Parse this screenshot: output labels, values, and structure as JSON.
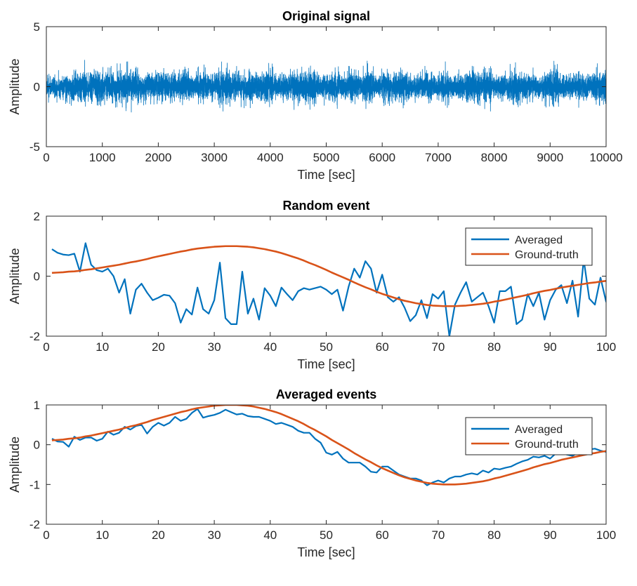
{
  "chart_data": [
    {
      "type": "line",
      "title": "Original signal",
      "xlabel": "Time [sec]",
      "ylabel": "Amplitude",
      "xlim": [
        0,
        10000
      ],
      "ylim": [
        -5,
        5
      ],
      "xticks": [
        "0",
        "1000",
        "2000",
        "3000",
        "4000",
        "5000",
        "6000",
        "7000",
        "8000",
        "9000",
        "10000"
      ],
      "yticks": [
        "-5",
        "0",
        "5"
      ],
      "grid": false,
      "legend": null,
      "series": [
        {
          "color": "#0072BD",
          "noise": {
            "n": 10000,
            "x_start": 1,
            "x_end": 10000,
            "std": 0.55,
            "clip": 2.3,
            "seed": 7
          }
        }
      ]
    },
    {
      "type": "line",
      "title": "Random event",
      "xlabel": "Time [sec]",
      "ylabel": "Amplitude",
      "xlim": [
        0,
        100
      ],
      "ylim": [
        -2,
        2
      ],
      "xticks": [
        "0",
        "10",
        "20",
        "30",
        "40",
        "50",
        "60",
        "70",
        "80",
        "90",
        "100"
      ],
      "yticks": [
        "-2",
        "0",
        "2"
      ],
      "grid": false,
      "legend": {
        "position": "right",
        "entries": [
          "Averaged",
          "Ground-truth"
        ]
      },
      "series": [
        {
          "name": "Averaged",
          "color": "#0072BD",
          "x_start": 1,
          "x_step": 1,
          "values": [
            0.9,
            0.78,
            0.72,
            0.7,
            0.75,
            0.15,
            1.1,
            0.38,
            0.2,
            0.15,
            0.25,
            0.0,
            -0.55,
            -0.1,
            -1.25,
            -0.45,
            -0.25,
            -0.55,
            -0.8,
            -0.72,
            -0.62,
            -0.65,
            -0.9,
            -1.55,
            -1.1,
            -1.28,
            -0.38,
            -1.1,
            -1.25,
            -0.8,
            0.45,
            -1.4,
            -1.6,
            -1.6,
            0.15,
            -1.25,
            -0.75,
            -1.45,
            -0.4,
            -0.65,
            -1.0,
            -0.38,
            -0.6,
            -0.8,
            -0.5,
            -0.4,
            -0.45,
            -0.4,
            -0.35,
            -0.45,
            -0.6,
            -0.45,
            -1.15,
            -0.35,
            0.25,
            -0.05,
            0.5,
            0.25,
            -0.55,
            0.05,
            -0.7,
            -0.85,
            -0.7,
            -1.05,
            -1.5,
            -1.3,
            -0.8,
            -1.4,
            -0.6,
            -0.75,
            -0.5,
            -2.0,
            -0.95,
            -0.55,
            -0.2,
            -0.85,
            -0.7,
            -0.55,
            -1.0,
            -1.55,
            -0.5,
            -0.5,
            -0.35,
            -1.6,
            -1.45,
            -0.6,
            -1.0,
            -0.55,
            -1.45,
            -0.8,
            -0.45,
            -0.3,
            -0.9,
            -0.15,
            -1.35,
            0.55,
            -0.75,
            -0.95,
            -0.05,
            -0.85,
            0.35,
            0.05
          ]
        },
        {
          "name": "Ground-truth",
          "color": "#D95319",
          "x_start": 1,
          "x_step": 1,
          "values": [
            0.11,
            0.12,
            0.13,
            0.15,
            0.16,
            0.18,
            0.21,
            0.23,
            0.26,
            0.29,
            0.32,
            0.35,
            0.38,
            0.42,
            0.46,
            0.49,
            0.53,
            0.57,
            0.62,
            0.66,
            0.7,
            0.74,
            0.78,
            0.82,
            0.85,
            0.89,
            0.92,
            0.94,
            0.96,
            0.98,
            0.99,
            1.0,
            1.0,
            1.0,
            0.99,
            0.98,
            0.96,
            0.93,
            0.9,
            0.86,
            0.82,
            0.77,
            0.71,
            0.65,
            0.59,
            0.52,
            0.44,
            0.37,
            0.29,
            0.21,
            0.12,
            0.04,
            -0.04,
            -0.12,
            -0.21,
            -0.29,
            -0.37,
            -0.44,
            -0.52,
            -0.59,
            -0.65,
            -0.71,
            -0.77,
            -0.82,
            -0.86,
            -0.9,
            -0.93,
            -0.96,
            -0.98,
            -0.99,
            -1.0,
            -1.0,
            -1.0,
            -0.99,
            -0.98,
            -0.96,
            -0.94,
            -0.92,
            -0.89,
            -0.85,
            -0.82,
            -0.78,
            -0.74,
            -0.7,
            -0.66,
            -0.62,
            -0.57,
            -0.53,
            -0.49,
            -0.46,
            -0.42,
            -0.38,
            -0.35,
            -0.32,
            -0.29,
            -0.26,
            -0.23,
            -0.21,
            -0.18,
            -0.16,
            -0.15,
            -0.13
          ]
        }
      ]
    },
    {
      "type": "line",
      "title": "Averaged events",
      "xlabel": "Time [sec]",
      "ylabel": "Amplitude",
      "xlim": [
        0,
        100
      ],
      "ylim": [
        -2,
        1
      ],
      "xticks": [
        "0",
        "10",
        "20",
        "30",
        "40",
        "50",
        "60",
        "70",
        "80",
        "90",
        "100"
      ],
      "yticks": [
        "-2",
        "-1",
        "0",
        "1"
      ],
      "grid": false,
      "legend": {
        "position": "right",
        "entries": [
          "Averaged",
          "Ground-truth"
        ]
      },
      "series": [
        {
          "name": "Averaged",
          "color": "#0072BD",
          "x_start": 1,
          "x_step": 1,
          "values": [
            0.15,
            0.08,
            0.07,
            -0.05,
            0.2,
            0.12,
            0.18,
            0.18,
            0.1,
            0.15,
            0.33,
            0.25,
            0.3,
            0.45,
            0.38,
            0.47,
            0.5,
            0.28,
            0.45,
            0.55,
            0.48,
            0.55,
            0.7,
            0.6,
            0.65,
            0.8,
            0.9,
            0.68,
            0.72,
            0.75,
            0.8,
            0.88,
            0.82,
            0.76,
            0.78,
            0.72,
            0.7,
            0.7,
            0.65,
            0.6,
            0.52,
            0.55,
            0.5,
            0.45,
            0.35,
            0.3,
            0.3,
            0.15,
            0.05,
            -0.2,
            -0.25,
            -0.18,
            -0.35,
            -0.45,
            -0.45,
            -0.45,
            -0.55,
            -0.68,
            -0.7,
            -0.55,
            -0.55,
            -0.65,
            -0.75,
            -0.8,
            -0.85,
            -0.85,
            -0.9,
            -1.02,
            -0.95,
            -0.9,
            -0.95,
            -0.85,
            -0.8,
            -0.8,
            -0.75,
            -0.72,
            -0.75,
            -0.65,
            -0.7,
            -0.6,
            -0.62,
            -0.58,
            -0.55,
            -0.48,
            -0.42,
            -0.38,
            -0.3,
            -0.32,
            -0.28,
            -0.35,
            -0.22,
            -0.2,
            -0.25,
            -0.28,
            -0.2,
            -0.15,
            -0.12,
            -0.1,
            -0.15,
            -0.18
          ]
        },
        {
          "name": "Ground-truth",
          "color": "#D95319",
          "x_start": 1,
          "x_step": 1,
          "values": [
            0.11,
            0.12,
            0.13,
            0.15,
            0.16,
            0.18,
            0.21,
            0.23,
            0.26,
            0.29,
            0.32,
            0.35,
            0.38,
            0.42,
            0.46,
            0.49,
            0.53,
            0.57,
            0.62,
            0.66,
            0.7,
            0.74,
            0.78,
            0.82,
            0.85,
            0.89,
            0.92,
            0.94,
            0.96,
            0.98,
            0.99,
            1.0,
            1.0,
            1.0,
            0.99,
            0.98,
            0.96,
            0.93,
            0.9,
            0.86,
            0.82,
            0.77,
            0.71,
            0.65,
            0.59,
            0.52,
            0.44,
            0.37,
            0.29,
            0.21,
            0.12,
            0.04,
            -0.04,
            -0.12,
            -0.21,
            -0.29,
            -0.37,
            -0.44,
            -0.52,
            -0.59,
            -0.65,
            -0.71,
            -0.77,
            -0.82,
            -0.86,
            -0.9,
            -0.93,
            -0.96,
            -0.98,
            -0.99,
            -1.0,
            -1.0,
            -1.0,
            -0.99,
            -0.98,
            -0.96,
            -0.94,
            -0.92,
            -0.89,
            -0.85,
            -0.82,
            -0.78,
            -0.74,
            -0.7,
            -0.66,
            -0.62,
            -0.57,
            -0.53,
            -0.49,
            -0.46,
            -0.42,
            -0.38,
            -0.35,
            -0.32,
            -0.29,
            -0.26,
            -0.23,
            -0.21,
            -0.18,
            -0.16,
            -0.15,
            -0.13
          ]
        }
      ]
    }
  ]
}
